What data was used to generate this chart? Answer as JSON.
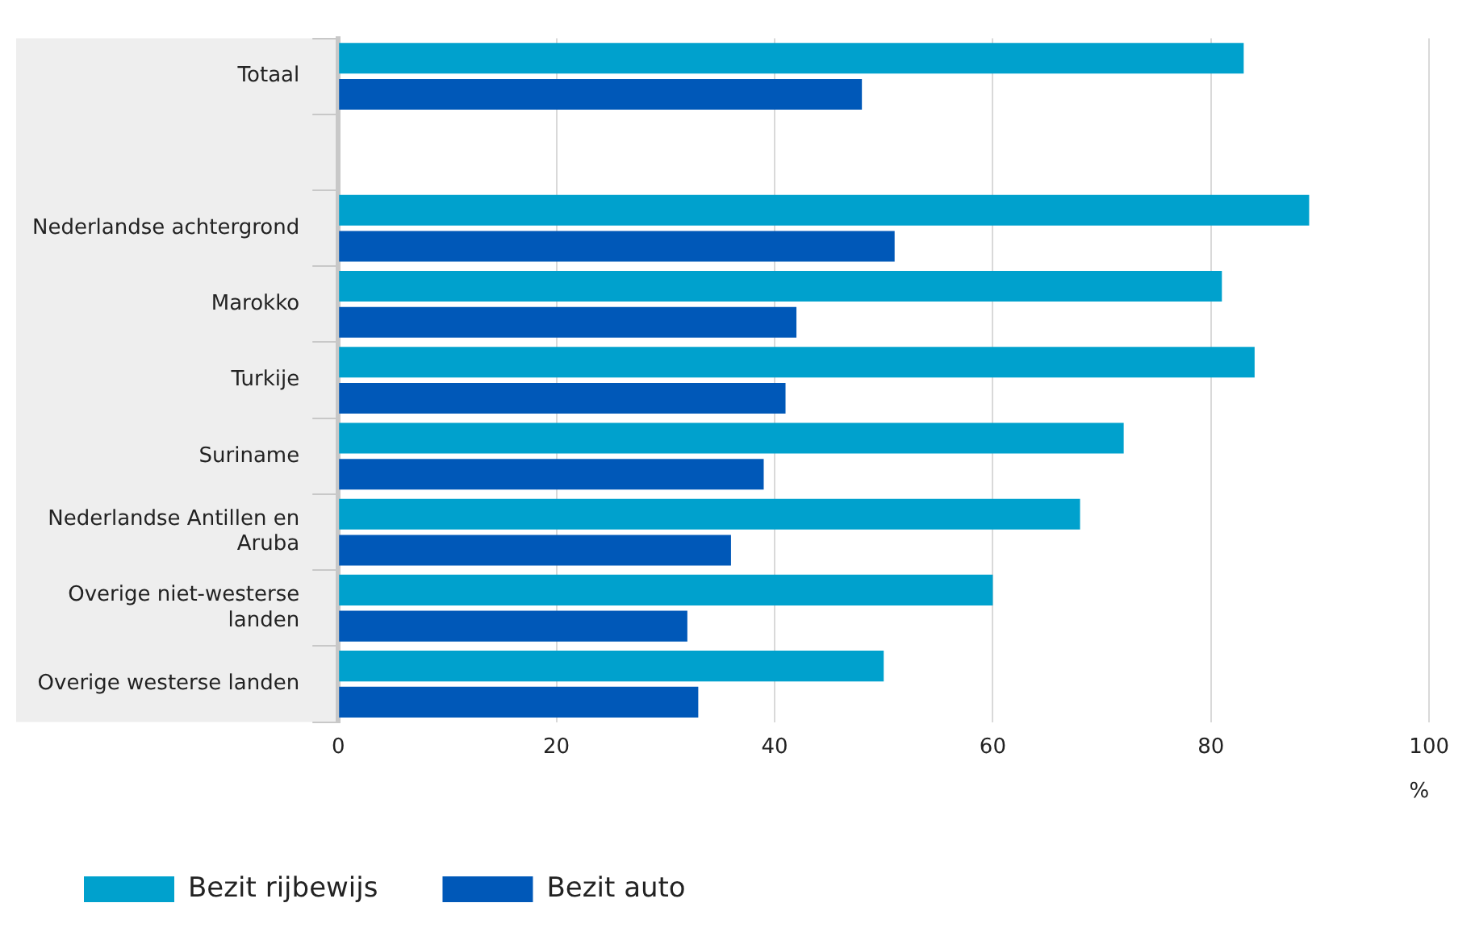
{
  "chart_data": {
    "type": "bar",
    "orientation": "horizontal",
    "xlabel": "%",
    "categories": [
      "Totaal",
      null,
      "Nederlandse achtergrond",
      "Marokko",
      "Turkije",
      "Suriname",
      "Nederlandse Antillen en Aruba",
      "Overige niet-westerse landen",
      "Overige westerse landen"
    ],
    "series": [
      {
        "name": "Bezit rijbewijs",
        "color": "#00a1cd",
        "values": [
          83,
          null,
          89,
          81,
          84,
          72,
          68,
          60,
          50
        ]
      },
      {
        "name": "Bezit auto",
        "color": "#0058b8",
        "values": [
          48,
          null,
          51,
          42,
          41,
          39,
          36,
          32,
          33
        ]
      }
    ],
    "xlim": [
      0,
      100
    ],
    "xticks": [
      0,
      20,
      40,
      60,
      80,
      100
    ],
    "grid": "x",
    "legend": "bottom left"
  }
}
